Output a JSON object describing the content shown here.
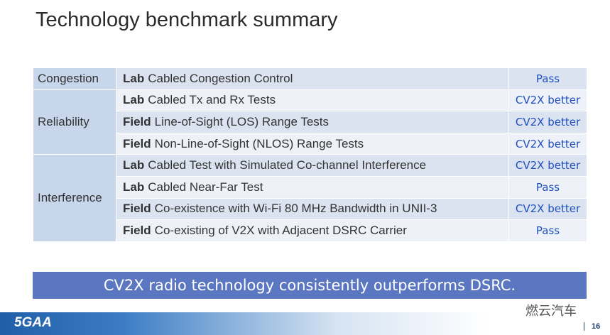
{
  "title": "Technology benchmark summary",
  "table": {
    "groups": [
      {
        "label": "Congestion",
        "rows": [
          {
            "setting": "Lab",
            "test": "Cabled Congestion Control",
            "result": "Pass"
          }
        ]
      },
      {
        "label": "Reliability",
        "rows": [
          {
            "setting": "Lab",
            "test": "Cabled Tx and Rx Tests",
            "result": "CV2X better"
          },
          {
            "setting": "Field",
            "test": "Line-of-Sight (LOS) Range Tests",
            "result": "CV2X better"
          },
          {
            "setting": "Field",
            "test": "Non-Line-of-Sight (NLOS) Range Tests",
            "result": "CV2X better"
          }
        ]
      },
      {
        "label": "Interference",
        "rows": [
          {
            "setting": "Lab",
            "test": "Cabled Test with Simulated Co-channel Interference",
            "result": "CV2X better"
          },
          {
            "setting": "Lab",
            "test": "Cabled Near-Far Test",
            "result": "Pass"
          },
          {
            "setting": "Field",
            "test": "Co-existence with Wi-Fi 80 MHz Bandwidth in UNII-3",
            "result": "CV2X better"
          },
          {
            "setting": "Field",
            "test": "Co-existing of V2X with Adjacent DSRC Carrier",
            "result": "Pass"
          }
        ]
      }
    ]
  },
  "banner": "CV2X radio technology consistently outperforms DSRC.",
  "footer": {
    "logo": "5GAA",
    "watermark": "燃云汽车",
    "page": "16"
  }
}
